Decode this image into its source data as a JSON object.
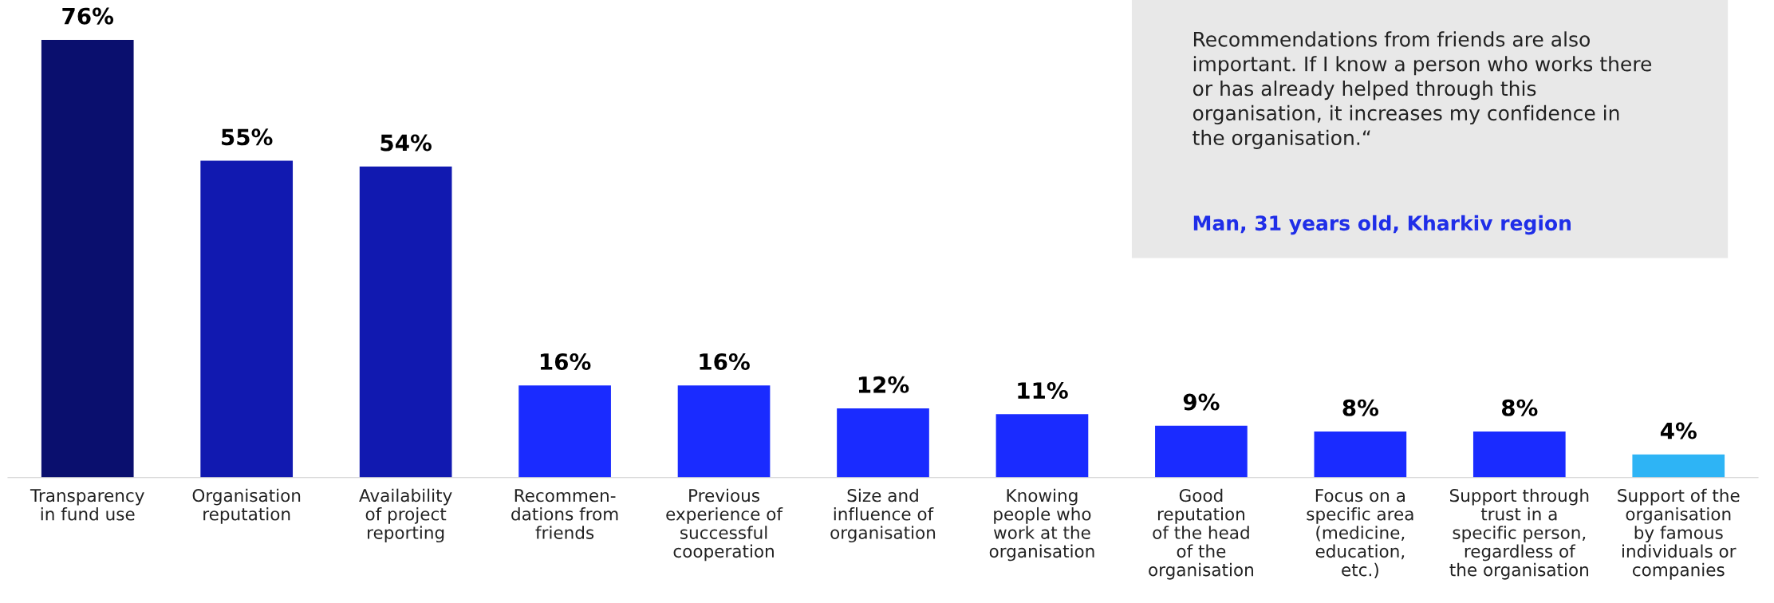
{
  "chart_data": {
    "type": "bar",
    "categories": [
      "Transparency\nin fund use",
      "Organisation\nreputation",
      "Availability\nof project\nreporting",
      "Recommen-\ndations from\nfriends",
      "Previous\nexperience of\nsuccessful\ncooperation",
      "Size and\ninfluence of\norganisation",
      "Knowing\npeople who\nwork at the\norganisation",
      "Good\nreputation\nof the head\nof the\norganisation",
      "Focus on a\nspecific area\n(medicine,\neducation,\netc.)",
      "Support through\ntrust in a\nspecific person,\nregardless of\nthe organisation",
      "Support of the\norganisation\nby famous\nindividuals or\ncompanies"
    ],
    "values": [
      76,
      55,
      54,
      16,
      16,
      12,
      11,
      9,
      8,
      8,
      4
    ],
    "colors": [
      "#0a0f6e",
      "#1119b0",
      "#1119b0",
      "#1a2bff",
      "#1a2bff",
      "#1a2bff",
      "#1a2bff",
      "#1a2bff",
      "#1a2bff",
      "#1a2bff",
      "#2eb4f5"
    ],
    "value_labels": [
      "76%",
      "55%",
      "54%",
      "16%",
      "16%",
      "12%",
      "11%",
      "9%",
      "8%",
      "8%",
      "4%"
    ],
    "annotations": [
      "Recommendations from friends are also\nimportant. If I know a person who works there\nor has already helped through this\norganisation, it increases my confidence in\nthe organisation.“",
      "Man, 31 years old, Kharkiv region"
    ],
    "grid": false,
    "legend": false
  }
}
